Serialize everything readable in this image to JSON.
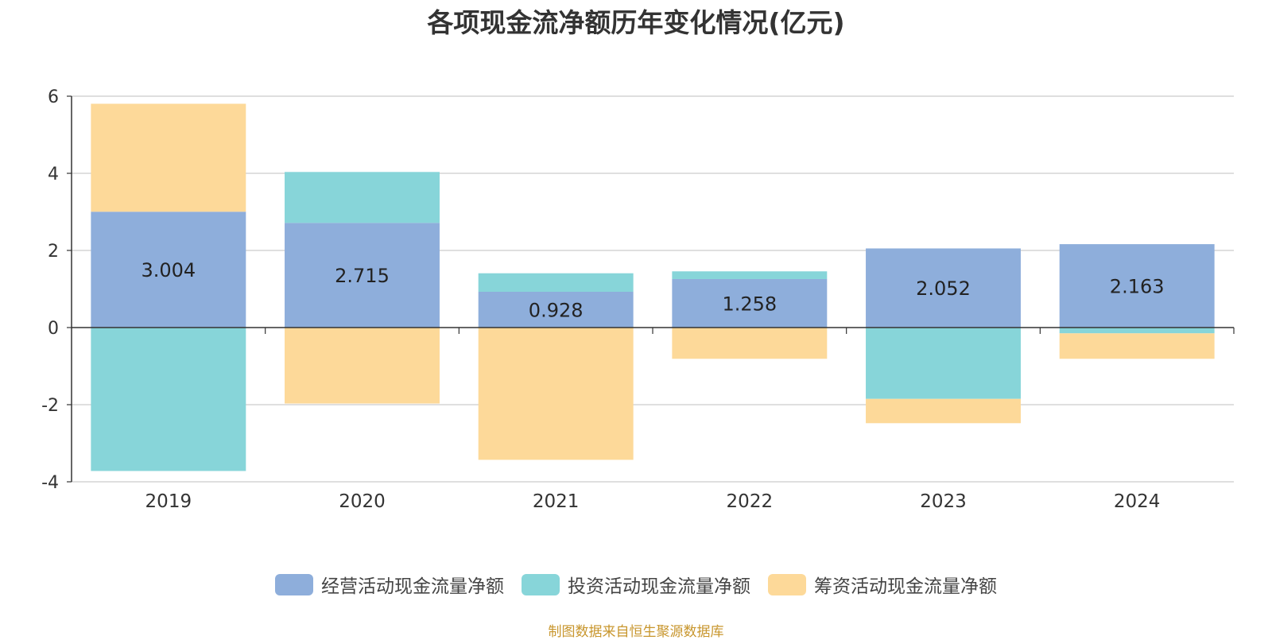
{
  "chart_data": {
    "type": "bar",
    "stacked": true,
    "title": "各项现金流净额历年变化情况(亿元)",
    "categories": [
      "2019",
      "2020",
      "2021",
      "2022",
      "2023",
      "2024"
    ],
    "ylim": [
      -4,
      6
    ],
    "yticks": [
      -4,
      -2,
      0,
      2,
      4,
      6
    ],
    "grid": true,
    "legend_position": "bottom",
    "series": [
      {
        "name": "经营活动现金流量净额",
        "color": "#8eaedb",
        "values": [
          3.004,
          2.715,
          0.928,
          1.258,
          2.052,
          2.163
        ],
        "labels": [
          "3.004",
          "2.715",
          "0.928",
          "1.258",
          "2.052",
          "2.163"
        ]
      },
      {
        "name": "投资活动现金流量净额",
        "color": "#87d5d9",
        "values": [
          -3.72,
          1.32,
          0.48,
          0.2,
          -1.85,
          -0.15
        ]
      },
      {
        "name": "筹资活动现金流量净额",
        "color": "#fdd999",
        "values": [
          2.8,
          -1.97,
          -3.43,
          -0.81,
          -0.63,
          -0.66
        ]
      }
    ]
  },
  "source": "制图数据来自恒生聚源数据库"
}
